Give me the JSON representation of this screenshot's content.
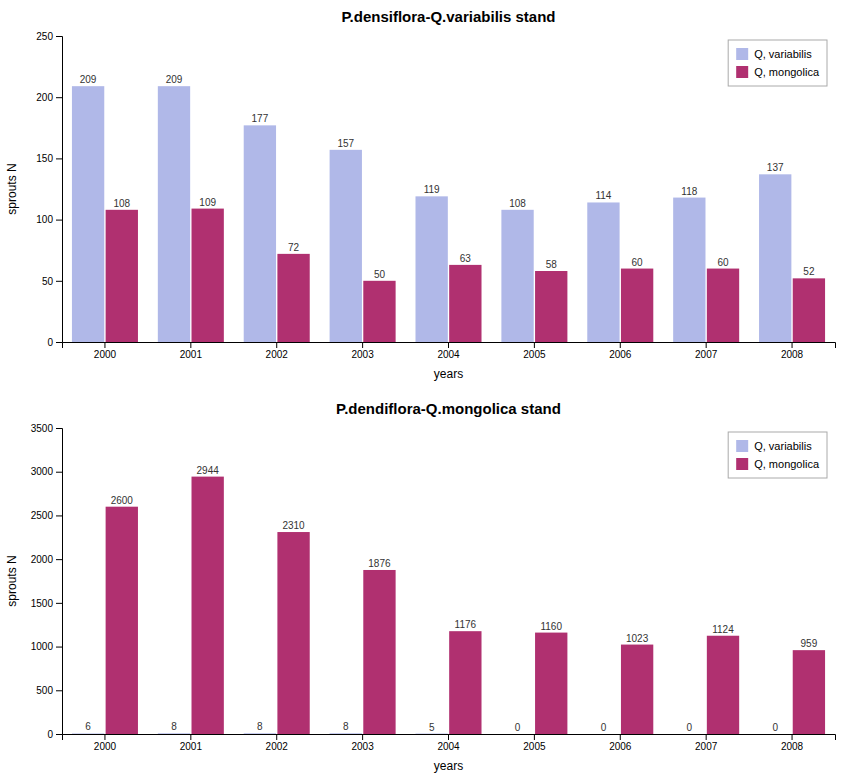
{
  "chart_data": [
    {
      "type": "bar",
      "title": "P.densiflora-Q.variabilis stand",
      "xlabel": "years",
      "ylabel": "sprouts N",
      "categories": [
        "2000",
        "2001",
        "2002",
        "2003",
        "2004",
        "2005",
        "2006",
        "2007",
        "2008"
      ],
      "series": [
        {
          "name": "Q, variabilis",
          "color": "#b0b8e8",
          "values": [
            209,
            209,
            177,
            157,
            119,
            108,
            114,
            118,
            137
          ]
        },
        {
          "name": "Q, mongolica",
          "color": "#b03070",
          "values": [
            108,
            109,
            72,
            50,
            63,
            58,
            60,
            60,
            52
          ]
        }
      ],
      "ylim": [
        0,
        250
      ],
      "yticks": [
        0,
        50,
        100,
        150,
        200,
        250
      ],
      "grid": false,
      "legend": "upper right",
      "data_labels": true
    },
    {
      "type": "bar",
      "title": "P.dendiflora-Q.mongolica stand",
      "xlabel": "years",
      "ylabel": "sprouts N",
      "categories": [
        "2000",
        "2001",
        "2002",
        "2003",
        "2004",
        "2005",
        "2006",
        "2007",
        "2008"
      ],
      "series": [
        {
          "name": "Q, variabilis",
          "color": "#b0b8e8",
          "values": [
            6,
            8,
            8,
            8,
            5,
            0,
            0,
            0,
            0
          ]
        },
        {
          "name": "Q, mongolica",
          "color": "#b03070",
          "values": [
            2600,
            2944,
            2310,
            1876,
            1176,
            1160,
            1023,
            1124,
            959
          ]
        }
      ],
      "ylim": [
        0,
        3500
      ],
      "yticks": [
        0,
        500,
        1000,
        1500,
        2000,
        2500,
        3000,
        3500
      ],
      "grid": false,
      "legend": "upper right",
      "data_labels": true
    }
  ]
}
